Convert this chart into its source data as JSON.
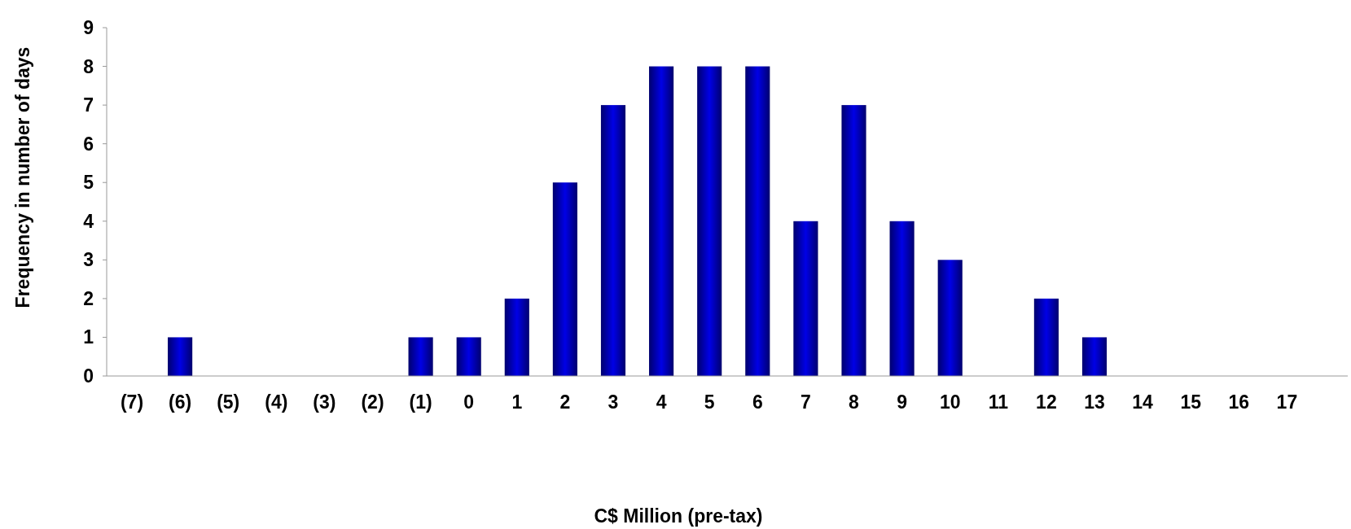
{
  "chart_data": {
    "type": "bar",
    "xlabel": "C$ Million (pre-tax)",
    "ylabel": "Frequency in number of days",
    "categories": [
      "(7)",
      "(6)",
      "(5)",
      "(4)",
      "(3)",
      "(2)",
      "(1)",
      "0",
      "1",
      "2",
      "3",
      "4",
      "5",
      "6",
      "7",
      "8",
      "9",
      "10",
      "11",
      "12",
      "13",
      "14",
      "15",
      "16",
      "17"
    ],
    "values": [
      0,
      1,
      0,
      0,
      0,
      0,
      1,
      1,
      2,
      5,
      7,
      8,
      8,
      8,
      4,
      7,
      4,
      3,
      0,
      2,
      1,
      0,
      0,
      0,
      0
    ],
    "color": "#0000e6",
    "ylim": [
      0,
      9
    ],
    "yticks": [
      0,
      1,
      2,
      3,
      4,
      5,
      6,
      7,
      8,
      9
    ]
  }
}
